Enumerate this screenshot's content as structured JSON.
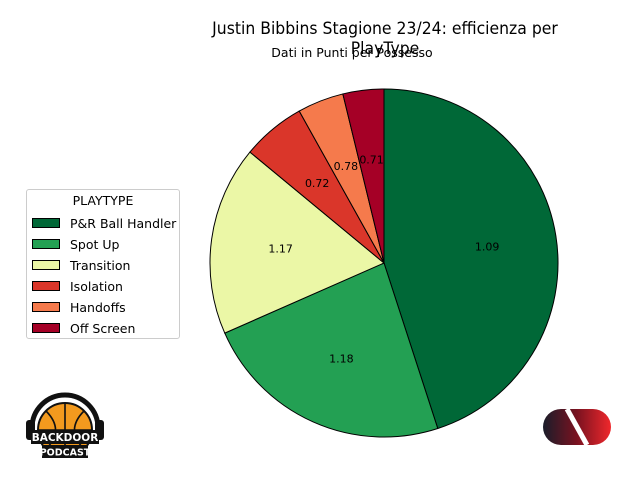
{
  "chart_data": {
    "type": "pie",
    "title": "Justin Bibbins Stagione 23/24: efficienza per PlayType",
    "subtitle": "Dati in Punti per Possesso",
    "legend_title": "PLAYTYPE",
    "legend_position": "center-left",
    "slices": [
      {
        "label": "P&R Ball Handler",
        "share": 45.0,
        "ppp": "1.09",
        "color": "#006837"
      },
      {
        "label": "Spot Up",
        "share": 23.4,
        "ppp": "1.18",
        "color": "#23a053"
      },
      {
        "label": "Transition",
        "share": 17.6,
        "ppp": "1.17",
        "color": "#ebf7a6"
      },
      {
        "label": "Isolation",
        "share": 5.9,
        "ppp": "0.72",
        "color": "#da362a"
      },
      {
        "label": "Handoffs",
        "share": 4.3,
        "ppp": "0.78",
        "color": "#f57a4c"
      },
      {
        "label": "Off Screen",
        "share": 3.8,
        "ppp": "0.71",
        "color": "#a50026"
      }
    ]
  },
  "logos": {
    "left_text": [
      "BACKDOOR",
      "PODCAST"
    ]
  }
}
